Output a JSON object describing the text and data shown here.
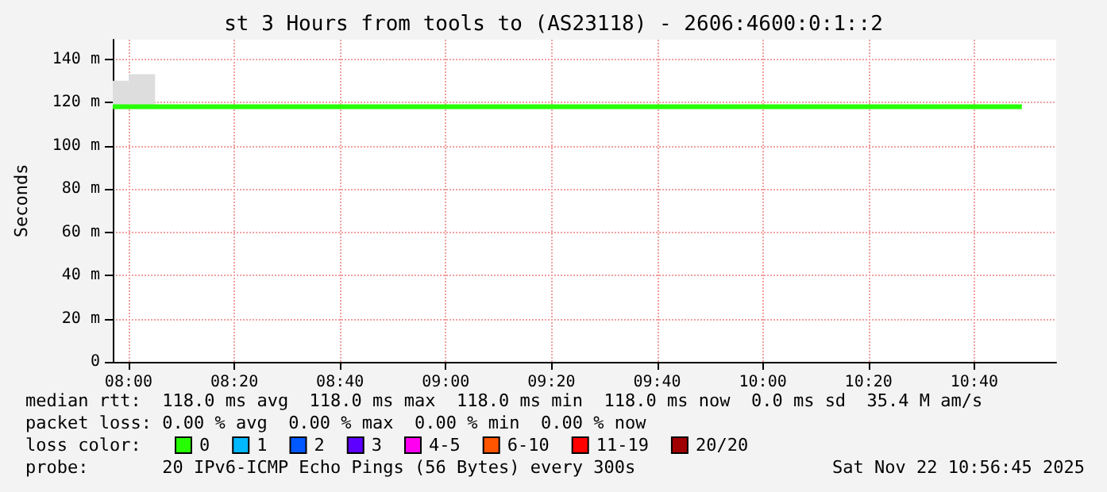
{
  "chart_data": {
    "type": "step",
    "title": "st 3 Hours from tools to (AS23118) - 2606:4600:0:1::2",
    "ylabel": "Seconds",
    "x": [
      7.95,
      8.0,
      8.0833,
      8.4167,
      9.25,
      9.3333,
      10.3333,
      10.5,
      10.8167
    ],
    "series": [
      {
        "name": "0",
        "color": "#26ff00",
        "values": [
          118,
          118,
          118,
          118,
          118,
          118,
          118,
          118,
          118
        ],
        "lower": [
          118,
          118,
          118,
          118,
          118,
          118,
          118,
          118,
          118
        ],
        "upper": [
          130,
          133,
          119,
          118,
          119,
          118,
          119,
          118,
          118
        ]
      },
      {
        "name": "1",
        "color": "#00b8ff",
        "values": [
          null,
          null,
          null,
          null,
          null,
          null,
          null,
          null,
          null
        ]
      },
      {
        "name": "2",
        "color": "#0059ff",
        "values": [
          null,
          null,
          null,
          null,
          null,
          null,
          null,
          null,
          null
        ]
      },
      {
        "name": "3",
        "color": "#5e00ff",
        "values": [
          null,
          null,
          null,
          null,
          null,
          null,
          null,
          null,
          null
        ]
      },
      {
        "name": "4-5",
        "color": "#ff00f0",
        "values": [
          null,
          null,
          null,
          null,
          null,
          null,
          null,
          null,
          null
        ]
      },
      {
        "name": "6-10",
        "color": "#ff5500",
        "values": [
          null,
          null,
          null,
          null,
          null,
          null,
          null,
          null,
          null
        ]
      },
      {
        "name": "11-19",
        "color": "#ff0000",
        "values": [
          null,
          null,
          null,
          null,
          null,
          null,
          null,
          null,
          null
        ]
      },
      {
        "name": "20/20",
        "color": "#a10000",
        "values": [
          null,
          null,
          null,
          null,
          null,
          null,
          null,
          null,
          null
        ]
      }
    ],
    "legend": "bottom",
    "legend_title": "loss color:",
    "xlim": [
      7.95,
      10.925
    ],
    "xticks": [
      {
        "value": 8,
        "label": "08:00"
      },
      {
        "value": 8.3333,
        "label": "08:20"
      },
      {
        "value": 8.6667,
        "label": "08:40"
      },
      {
        "value": 9,
        "label": "09:00"
      },
      {
        "value": 9.3333,
        "label": "09:20"
      },
      {
        "value": 9.6667,
        "label": "09:40"
      },
      {
        "value": 10,
        "label": "10:00"
      },
      {
        "value": 10.3333,
        "label": "10:20"
      },
      {
        "value": 10.6667,
        "label": "10:40"
      }
    ],
    "ylim": [
      0,
      149
    ],
    "yticks": [
      0,
      {
        "value": 20,
        "label": "20 m"
      },
      {
        "value": 40,
        "label": "40 m"
      },
      {
        "value": 60,
        "label": "60 m"
      },
      {
        "value": 80,
        "label": "80 m"
      },
      {
        "value": 100,
        "label": "100 m"
      },
      {
        "value": 120,
        "label": "120 m"
      },
      {
        "value": 140,
        "label": "140 m"
      }
    ],
    "grid": true,
    "annotations": [
      "median rtt:  118.0 ms avg  118.0 ms max  118.0 ms min  118.0 ms now  0.0 ms sd  35.4 M am/s",
      "packet loss: 0.00 % avg  0.00 % max  0.00 % min  0.00 % now",
      "probe:       20 IPv6-ICMP Echo Pings (56 Bytes) every 300s",
      "Sat Nov 22 10:56:45 2025"
    ]
  }
}
